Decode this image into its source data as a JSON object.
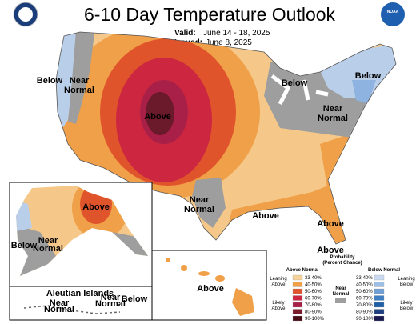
{
  "header": {
    "title": "6-10 Day Temperature Outlook",
    "valid_label": "Valid:",
    "valid_dates": "June 14 - 18, 2025",
    "issued_label": "Issued:",
    "issued_date": "June 8, 2025",
    "logo": "NOAA"
  },
  "map": {
    "labels": [
      {
        "lines": [
          "Below"
        ]
      },
      {
        "lines": [
          "Near",
          "Normal"
        ]
      },
      {
        "lines": [
          "Above"
        ]
      },
      {
        "lines": [
          "Below"
        ]
      },
      {
        "lines": [
          "Near",
          "Normal"
        ]
      },
      {
        "lines": [
          "Below"
        ]
      },
      {
        "lines": [
          "Near",
          "Normal"
        ]
      },
      {
        "lines": [
          "Above"
        ]
      },
      {
        "lines": [
          "Above"
        ]
      },
      {
        "lines": [
          "Above"
        ]
      },
      {
        "lines": [
          "Above"
        ]
      },
      {
        "lines": [
          "Below"
        ]
      },
      {
        "lines": [
          "Near",
          "Normal"
        ]
      },
      {
        "lines": [
          "Near",
          "Normal"
        ]
      },
      {
        "lines": [
          "Near",
          "Normal"
        ]
      },
      {
        "lines": [
          "Below"
        ]
      },
      {
        "lines": [
          "Above"
        ]
      }
    ],
    "aleutian_title": "Aleutian Islands"
  },
  "legend": {
    "title": [
      "Probability",
      "(Percent Chance)"
    ],
    "above_title": "Above Normal",
    "below_title": "Below Normal",
    "near_label": [
      "Near",
      "Normal"
    ],
    "above_bins": [
      "33-40%",
      "40-50%",
      "50-60%",
      "60-70%",
      "70-80%",
      "80-90%",
      "90-100%"
    ],
    "below_bins": [
      "33-40%",
      "40-50%",
      "50-60%",
      "60-70%",
      "70-80%",
      "80-90%",
      "90-100%"
    ],
    "leaning_above": [
      "Leaning",
      "Above"
    ],
    "likely_above": [
      "Likely",
      "Above"
    ],
    "leaning_below": [
      "Leaning",
      "Below"
    ],
    "likely_below": [
      "Likely",
      "Below"
    ]
  }
}
